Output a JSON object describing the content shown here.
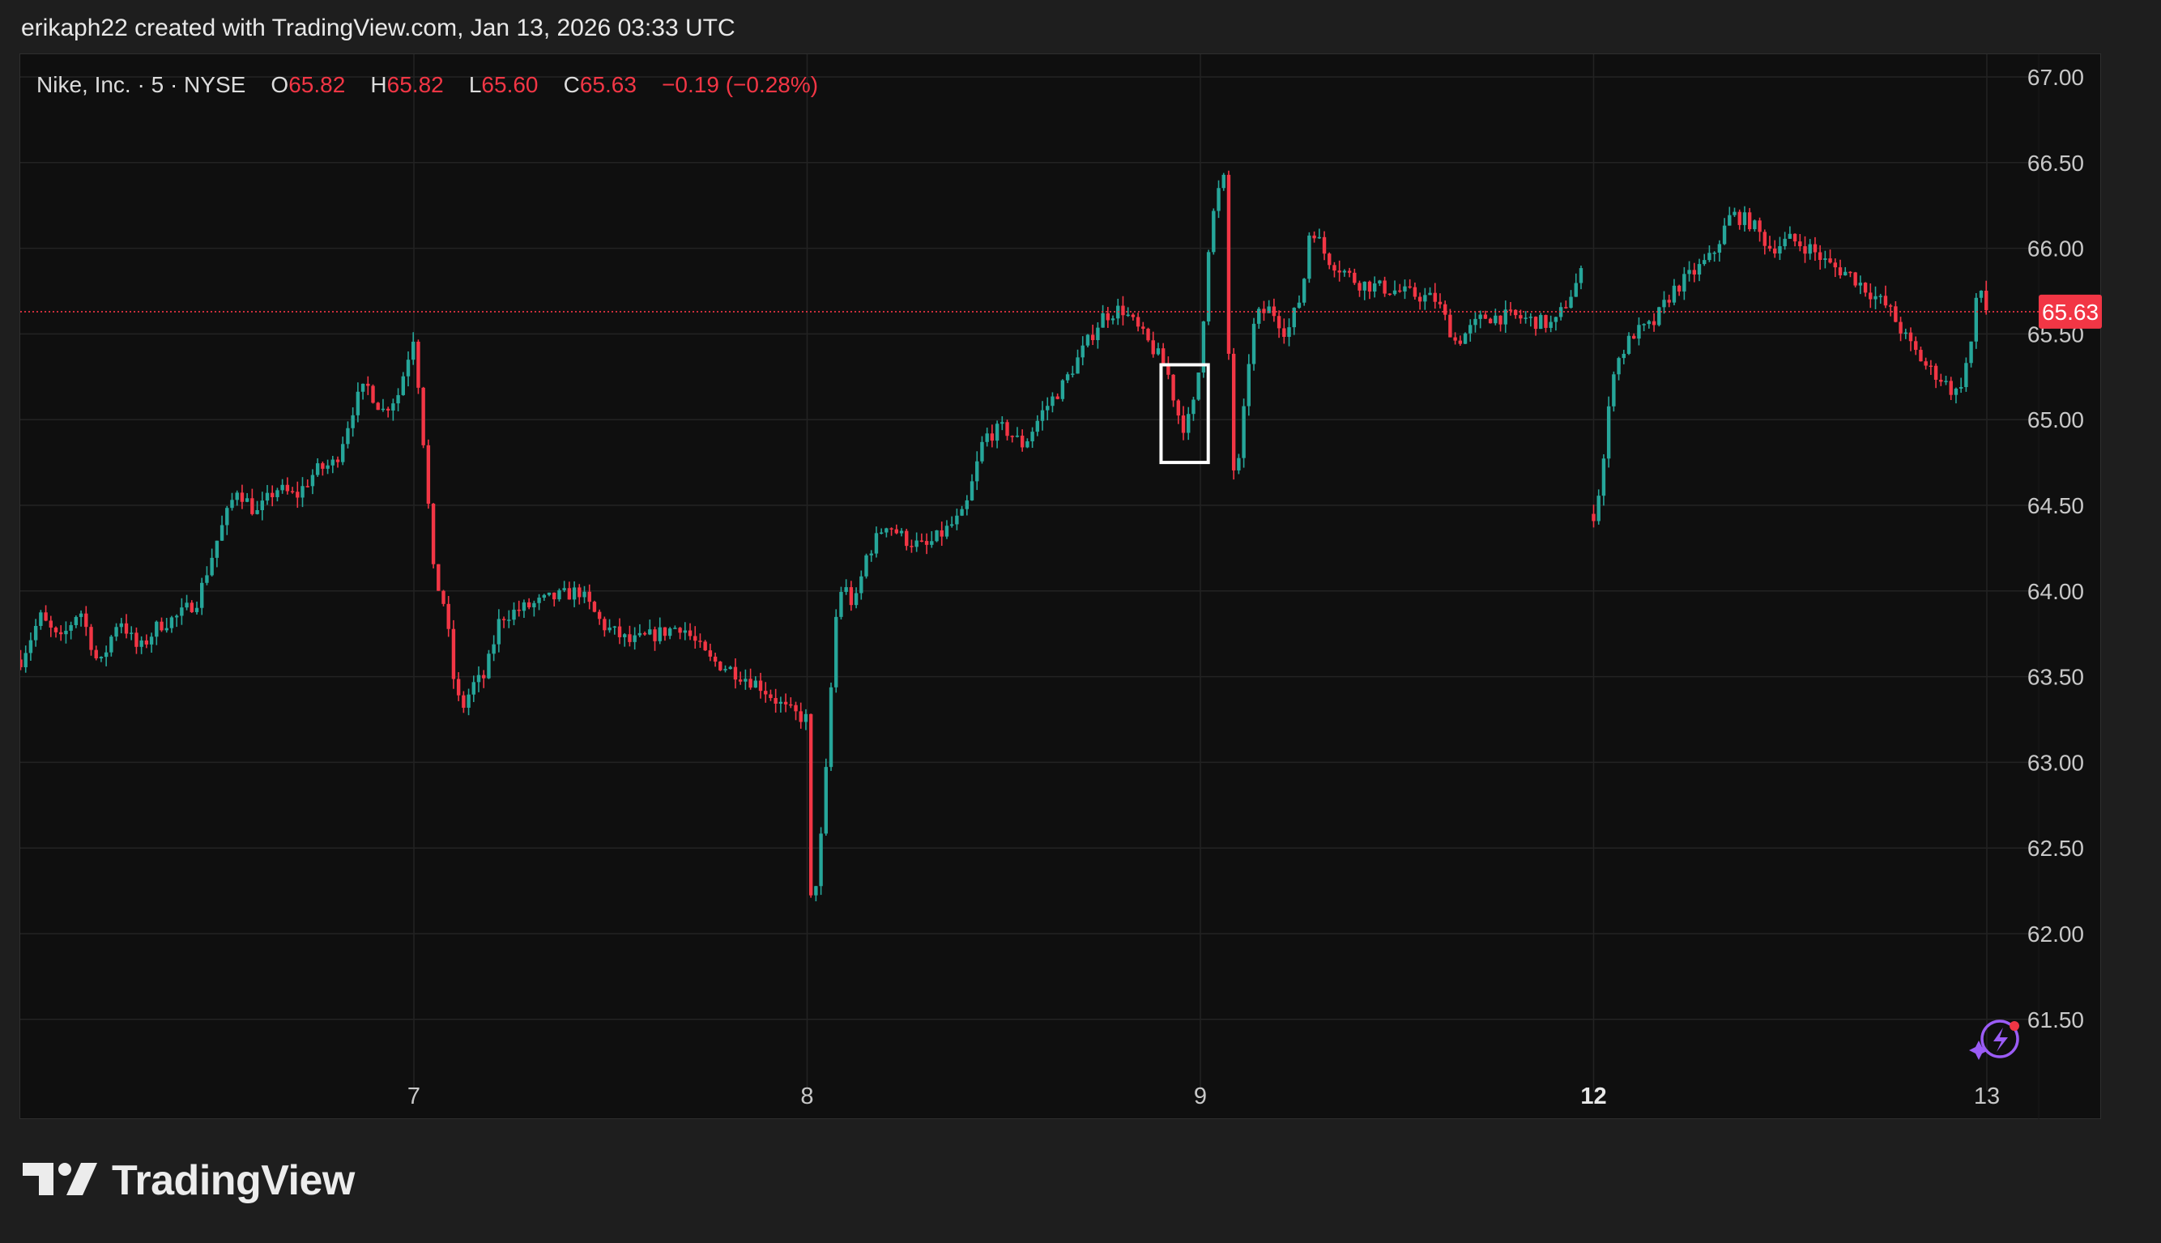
{
  "header": {
    "text": "erikaph22 created with TradingView.com, Jan 13, 2026 03:33 UTC"
  },
  "legend": {
    "symbol": "Nike, Inc. · 5 · NYSE",
    "o_label": "O",
    "o_value": "65.82",
    "h_label": "H",
    "h_value": "65.82",
    "l_label": "L",
    "l_value": "65.60",
    "c_label": "C",
    "c_value": "65.63",
    "change": "−0.19 (−0.28%)"
  },
  "price_badge": "65.63",
  "brand": "TradingView",
  "colors": {
    "up": "#26a69a",
    "down": "#f23645",
    "background": "#0f0f0f",
    "grid": "#232323",
    "last_price_line": "#f23645",
    "badge": "#f23645",
    "ai_icon": "#9b5cf6"
  },
  "icons": {
    "ai_assistant": "sparkle-lightning-icon",
    "logo": "tradingview-logo-icon"
  },
  "chart_data": {
    "type": "candlestick",
    "symbol": "Nike, Inc.",
    "interval": "5",
    "exchange": "NYSE",
    "last_price": 65.63,
    "ylim": [
      61.2,
      67.1
    ],
    "y_ticks": [
      "67.00",
      "66.50",
      "66.00",
      "65.50",
      "65.00",
      "64.50",
      "64.00",
      "63.50",
      "63.00",
      "62.50",
      "62.00",
      "61.50"
    ],
    "x_ticks": [
      {
        "label": "7",
        "day": 7,
        "bold": false
      },
      {
        "label": "8",
        "day": 8,
        "bold": false
      },
      {
        "label": "9",
        "day": 9,
        "bold": false
      },
      {
        "label": "12",
        "day": 12,
        "bold": true
      },
      {
        "label": "13",
        "day": 13,
        "bold": false
      }
    ],
    "grid": true,
    "highlight_box": {
      "day_start": 8.9,
      "day_end": 9.02,
      "price_low": 64.75,
      "price_high": 65.32
    },
    "price_path": [
      [
        6.0,
        63.6
      ],
      [
        6.05,
        63.85
      ],
      [
        6.1,
        63.7
      ],
      [
        6.15,
        63.9
      ],
      [
        6.2,
        63.55
      ],
      [
        6.25,
        63.85
      ],
      [
        6.3,
        63.65
      ],
      [
        6.35,
        63.8
      ],
      [
        6.4,
        63.85
      ],
      [
        6.45,
        63.95
      ],
      [
        6.5,
        64.3
      ],
      [
        6.55,
        64.6
      ],
      [
        6.6,
        64.45
      ],
      [
        6.65,
        64.6
      ],
      [
        6.7,
        64.55
      ],
      [
        6.75,
        64.7
      ],
      [
        6.8,
        64.75
      ],
      [
        6.85,
        65.1
      ],
      [
        6.88,
        65.2
      ],
      [
        6.92,
        65.05
      ],
      [
        6.96,
        65.15
      ],
      [
        7.0,
        65.5
      ],
      [
        7.02,
        65.0
      ],
      [
        7.05,
        64.1
      ],
      [
        7.08,
        63.9
      ],
      [
        7.1,
        63.5
      ],
      [
        7.12,
        63.3
      ],
      [
        7.15,
        63.45
      ],
      [
        7.18,
        63.5
      ],
      [
        7.22,
        63.85
      ],
      [
        7.28,
        63.9
      ],
      [
        7.34,
        63.95
      ],
      [
        7.42,
        64.0
      ],
      [
        7.48,
        63.8
      ],
      [
        7.55,
        63.7
      ],
      [
        7.62,
        63.75
      ],
      [
        7.68,
        63.8
      ],
      [
        7.75,
        63.6
      ],
      [
        7.8,
        63.55
      ],
      [
        7.88,
        63.45
      ],
      [
        7.95,
        63.3
      ],
      [
        8.0,
        63.25
      ],
      [
        8.01,
        62.15
      ],
      [
        8.03,
        62.4
      ],
      [
        8.05,
        63.0
      ],
      [
        8.07,
        63.8
      ],
      [
        8.09,
        64.05
      ],
      [
        8.12,
        63.9
      ],
      [
        8.15,
        64.2
      ],
      [
        8.2,
        64.4
      ],
      [
        8.25,
        64.3
      ],
      [
        8.3,
        64.25
      ],
      [
        8.35,
        64.35
      ],
      [
        8.4,
        64.45
      ],
      [
        8.45,
        64.9
      ],
      [
        8.5,
        64.95
      ],
      [
        8.55,
        64.85
      ],
      [
        8.6,
        65.05
      ],
      [
        8.65,
        65.2
      ],
      [
        8.7,
        65.4
      ],
      [
        8.75,
        65.6
      ],
      [
        8.8,
        65.65
      ],
      [
        8.85,
        65.5
      ],
      [
        8.9,
        65.35
      ],
      [
        8.92,
        65.25
      ],
      [
        8.94,
        65.05
      ],
      [
        8.96,
        64.95
      ],
      [
        8.98,
        65.05
      ],
      [
        9.0,
        65.35
      ],
      [
        9.02,
        66.0
      ],
      [
        9.04,
        66.3
      ],
      [
        9.06,
        66.4
      ],
      [
        9.08,
        64.7
      ],
      [
        9.1,
        64.75
      ],
      [
        9.12,
        65.3
      ],
      [
        9.14,
        65.6
      ],
      [
        9.18,
        65.65
      ],
      [
        9.22,
        65.5
      ],
      [
        9.26,
        65.75
      ],
      [
        9.28,
        66.15
      ],
      [
        9.32,
        65.95
      ],
      [
        9.4,
        65.8
      ],
      [
        9.5,
        65.75
      ],
      [
        9.6,
        65.7
      ],
      [
        9.65,
        65.45
      ],
      [
        9.72,
        65.6
      ],
      [
        9.8,
        65.6
      ],
      [
        9.9,
        65.55
      ],
      [
        9.98,
        65.9
      ],
      [
        12.0,
        64.45
      ],
      [
        12.02,
        64.65
      ],
      [
        12.05,
        65.3
      ],
      [
        12.1,
        65.5
      ],
      [
        12.15,
        65.55
      ],
      [
        12.2,
        65.75
      ],
      [
        12.25,
        65.85
      ],
      [
        12.3,
        65.95
      ],
      [
        12.35,
        66.2
      ],
      [
        12.4,
        66.15
      ],
      [
        12.45,
        66.0
      ],
      [
        12.5,
        66.05
      ],
      [
        12.55,
        66.0
      ],
      [
        12.6,
        65.9
      ],
      [
        12.65,
        65.85
      ],
      [
        12.7,
        65.75
      ],
      [
        12.75,
        65.65
      ],
      [
        12.8,
        65.45
      ],
      [
        12.85,
        65.3
      ],
      [
        12.88,
        65.25
      ],
      [
        12.9,
        65.2
      ],
      [
        12.92,
        65.15
      ],
      [
        12.94,
        65.25
      ],
      [
        12.96,
        65.45
      ],
      [
        12.98,
        65.8
      ],
      [
        13.0,
        65.63
      ]
    ]
  }
}
